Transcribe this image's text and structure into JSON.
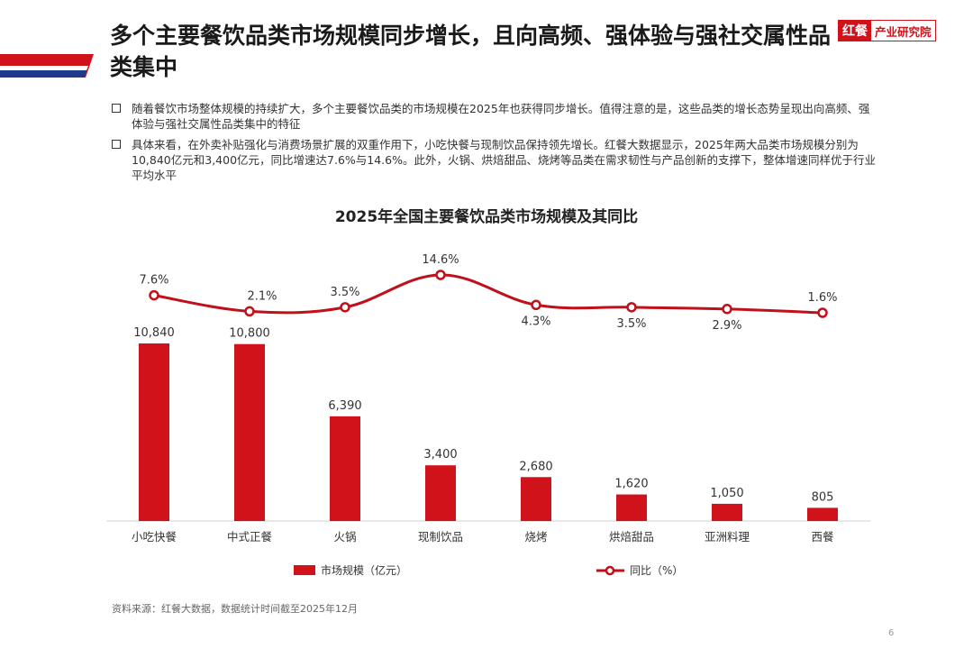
{
  "header": {
    "title": "多个主要餐饮品类市场规模同步增长，且向高频、强体验与强社交属性品类集中"
  },
  "logo": {
    "mark": "红餐",
    "text": "产业研究院"
  },
  "bullets": [
    "随着餐饮市场整体规模的持续扩大，多个主要餐饮品类的市场规模在2025年也获得同步增长。值得注意的是，这些品类的增长态势呈现出向高频、强体验与强社交属性品类集中的特征",
    "具体来看，在外卖补贴强化与消费场景扩展的双重作用下，小吃快餐与现制饮品保持领先增长。红餐大数据显示，2025年两大品类市场规模分别为10,840亿元和3,400亿元，同比增速达7.6%与14.6%。此外，火锅、烘焙甜品、烧烤等品类在需求韧性与产品创新的支撑下，整体增速同样优于行业平均水平"
  ],
  "footer": {
    "source": "资料来源：红餐大数据，数据统计时间截至2025年12月",
    "page": "6"
  },
  "colors": {
    "bar": "#d0121b",
    "line": "#c0101a",
    "accent_red": "#d0121b",
    "accent_blue": "#1f3a8a"
  },
  "chart_data": {
    "type": "bar",
    "title": "2025年全国主要餐饮品类市场规模及其同比",
    "categories": [
      "小吃快餐",
      "中式正餐",
      "火锅",
      "现制饮品",
      "烧烤",
      "烘焙甜品",
      "亚洲料理",
      "西餐"
    ],
    "series": [
      {
        "name": "市场规模（亿元）",
        "type": "bar",
        "values": [
          10840,
          10800,
          6390,
          3400,
          2680,
          1620,
          1050,
          805
        ],
        "labels": [
          "10,840",
          "10,800",
          "6,390",
          "3,400",
          "2,680",
          "1,620",
          "1,050",
          "805"
        ]
      },
      {
        "name": "同比（%）",
        "type": "line",
        "values": [
          7.6,
          2.1,
          3.5,
          14.6,
          4.3,
          3.5,
          2.9,
          1.6
        ],
        "labels": [
          "7.6%",
          "2.1%",
          "3.5%",
          "14.6%",
          "4.3%",
          "3.5%",
          "2.9%",
          "1.6%"
        ]
      }
    ],
    "legend_position": "bottom",
    "grid": false
  }
}
